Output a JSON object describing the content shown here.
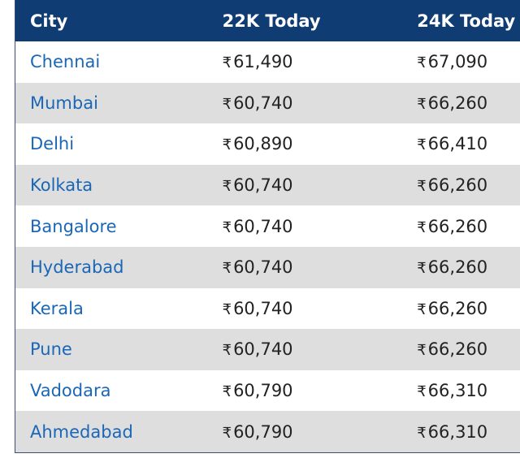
{
  "table": {
    "headers": [
      "City",
      "22K Today",
      "24K Today"
    ],
    "currency_symbol": "₹",
    "rows": [
      {
        "city": "Chennai",
        "k22": "61,490",
        "k24": "67,090"
      },
      {
        "city": "Mumbai",
        "k22": "60,740",
        "k24": "66,260"
      },
      {
        "city": "Delhi",
        "k22": "60,890",
        "k24": "66,410"
      },
      {
        "city": "Kolkata",
        "k22": "60,740",
        "k24": "66,260"
      },
      {
        "city": "Bangalore",
        "k22": "60,740",
        "k24": "66,260"
      },
      {
        "city": "Hyderabad",
        "k22": "60,740",
        "k24": "66,260"
      },
      {
        "city": "Kerala",
        "k22": "60,740",
        "k24": "66,260"
      },
      {
        "city": "Pune",
        "k22": "60,740",
        "k24": "66,260"
      },
      {
        "city": "Vadodara",
        "k22": "60,790",
        "k24": "66,310"
      },
      {
        "city": "Ahmedabad",
        "k22": "60,790",
        "k24": "66,310"
      }
    ]
  },
  "colors": {
    "header_bg": "#0f3c73",
    "header_text": "#ffffff",
    "city_link": "#1a67b8",
    "row_alt_bg": "#dedede"
  }
}
